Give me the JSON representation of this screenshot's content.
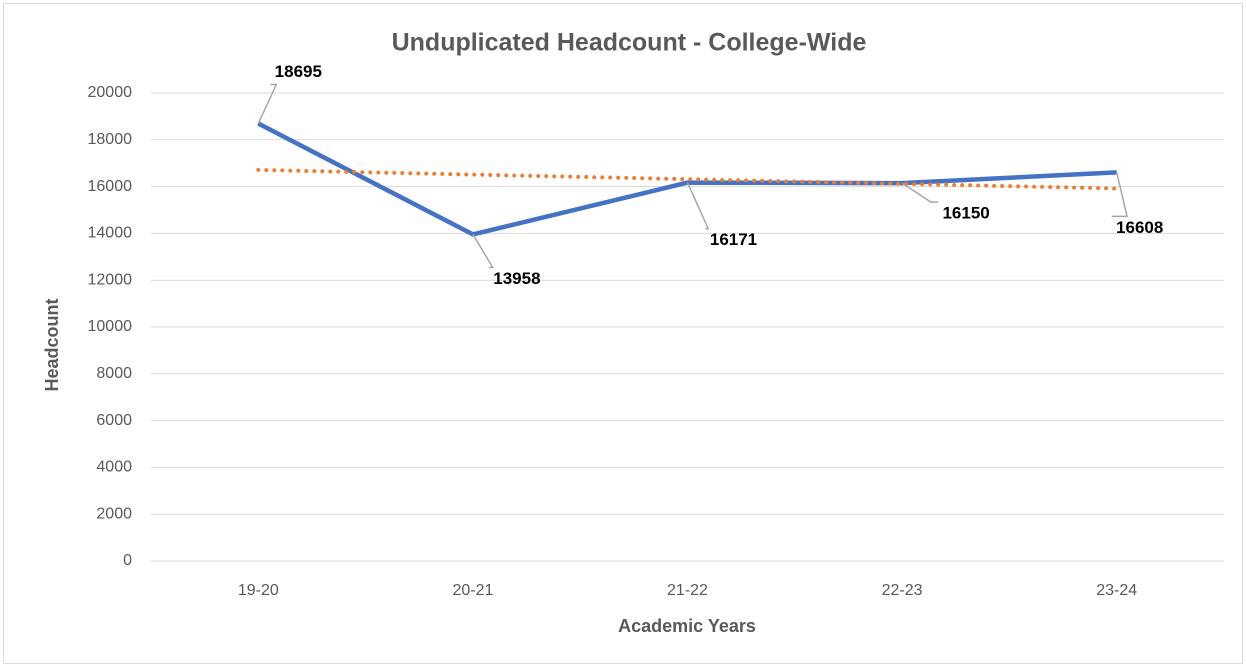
{
  "chart_data": {
    "type": "line",
    "title": "Unduplicated Headcount - College-Wide",
    "x_label": "Academic Years",
    "y_label": "Headcount",
    "categories": [
      "19-20",
      "20-21",
      "21-22",
      "22-23",
      "23-24"
    ],
    "series": [
      {
        "color": "#4472c4",
        "style": "solid",
        "data_labels": true,
        "values": [
          18695,
          13958,
          16171,
          16150,
          16608
        ]
      },
      {
        "color": "#ed7d31",
        "style": "dotted",
        "data_labels": false,
        "values": [
          16712.8,
          16514.6,
          16316.4,
          16118.2,
          15920
        ]
      }
    ],
    "ylim": [
      0,
      20000
    ],
    "yticks": [
      0,
      2000,
      4000,
      6000,
      8000,
      10000,
      12000,
      14000,
      16000,
      18000,
      20000
    ],
    "grid": true
  }
}
